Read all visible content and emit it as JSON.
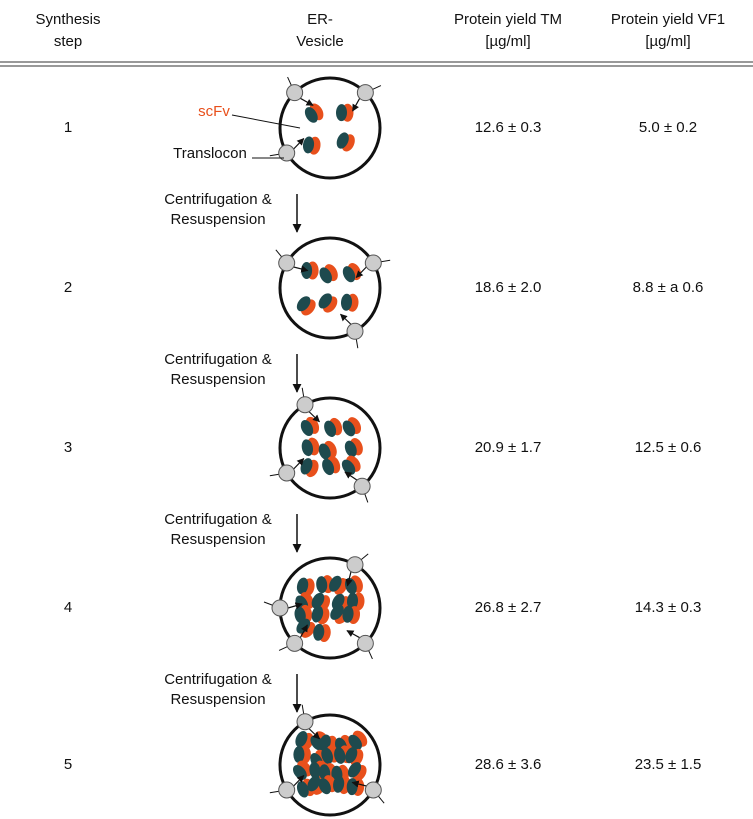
{
  "table": {
    "columns": [
      [
        "Synthesis",
        "step"
      ],
      [
        "ER-",
        "Vesicle"
      ],
      [
        "Protein yield TM",
        "[µg/ml]"
      ],
      [
        "Protein yield VF1",
        "[µg/ml]"
      ]
    ],
    "rows": [
      {
        "step": "1",
        "yield_tm": "12.6 ± 0.3",
        "yield_vf1": "5.0 ± 0.2"
      },
      {
        "step": "2",
        "yield_tm": "18.6 ± 2.0",
        "yield_vf1": "8.8 ± a 0.6"
      },
      {
        "step": "3",
        "yield_tm": "20.9 ± 1.7",
        "yield_vf1": "12.5 ± 0.6"
      },
      {
        "step": "4",
        "yield_tm": "26.8 ± 2.7",
        "yield_vf1": "14.3 ± 0.3"
      },
      {
        "step": "5",
        "yield_tm": "28.6 ± 3.6",
        "yield_vf1": "23.5 ± 1.5"
      }
    ],
    "transitions": [
      [
        "Centrifugation &",
        "Resuspension"
      ],
      [
        "Centrifugation &",
        "Resuspension"
      ],
      [
        "Centrifugation &",
        "Resuspension"
      ],
      [
        "Centrifugation &",
        "Resuspension"
      ]
    ],
    "labels": {
      "scfv": "scFv",
      "translocon": "Translocon"
    }
  }
}
